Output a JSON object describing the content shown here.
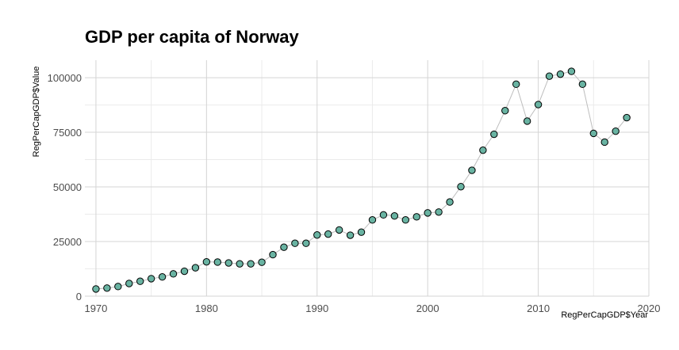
{
  "chart_data": {
    "type": "scatter",
    "title": "GDP per capita of Norway",
    "xlabel": "RegPerCapGDP$Year",
    "ylabel": "RegPerCapGDP$Value",
    "xlim": [
      1969,
      2020
    ],
    "ylim": [
      0,
      108000
    ],
    "x_ticks": [
      1970,
      1980,
      1990,
      2000,
      2010,
      2020
    ],
    "y_ticks": [
      0,
      25000,
      50000,
      75000,
      100000
    ],
    "x_tick_labels": [
      "1970",
      "1980",
      "1990",
      "2000",
      "2010",
      "2020"
    ],
    "y_tick_labels": [
      "0",
      "25000",
      "50000",
      "75000",
      "100000"
    ],
    "grid": true,
    "connect_points": true,
    "point_color": "#69b3a2",
    "line_color": "#bdbdbd",
    "series": [
      {
        "x": [
          1970,
          1971,
          1972,
          1973,
          1974,
          1975,
          1976,
          1977,
          1978,
          1979,
          1980,
          1981,
          1982,
          1983,
          1984,
          1985,
          1986,
          1987,
          1988,
          1989,
          1990,
          1991,
          1992,
          1993,
          1994,
          1995,
          1996,
          1997,
          1998,
          1999,
          2000,
          2001,
          2002,
          2003,
          2004,
          2005,
          2006,
          2007,
          2008,
          2009,
          2010,
          2011,
          2012,
          2013,
          2014,
          2015,
          2016,
          2017,
          2018
        ],
        "y": [
          3300,
          3700,
          4400,
          5800,
          6800,
          8000,
          8800,
          10200,
          11400,
          13000,
          15700,
          15600,
          15200,
          14800,
          14800,
          15500,
          19000,
          22400,
          24200,
          24200,
          28000,
          28400,
          30300,
          27900,
          29300,
          34900,
          37200,
          36700,
          34900,
          36300,
          38100,
          38500,
          43100,
          50100,
          57600,
          66800,
          74100,
          84900,
          97000,
          80100,
          87700,
          100700,
          101600,
          102900,
          97000,
          74500,
          70500,
          75500,
          81700
        ]
      }
    ]
  }
}
